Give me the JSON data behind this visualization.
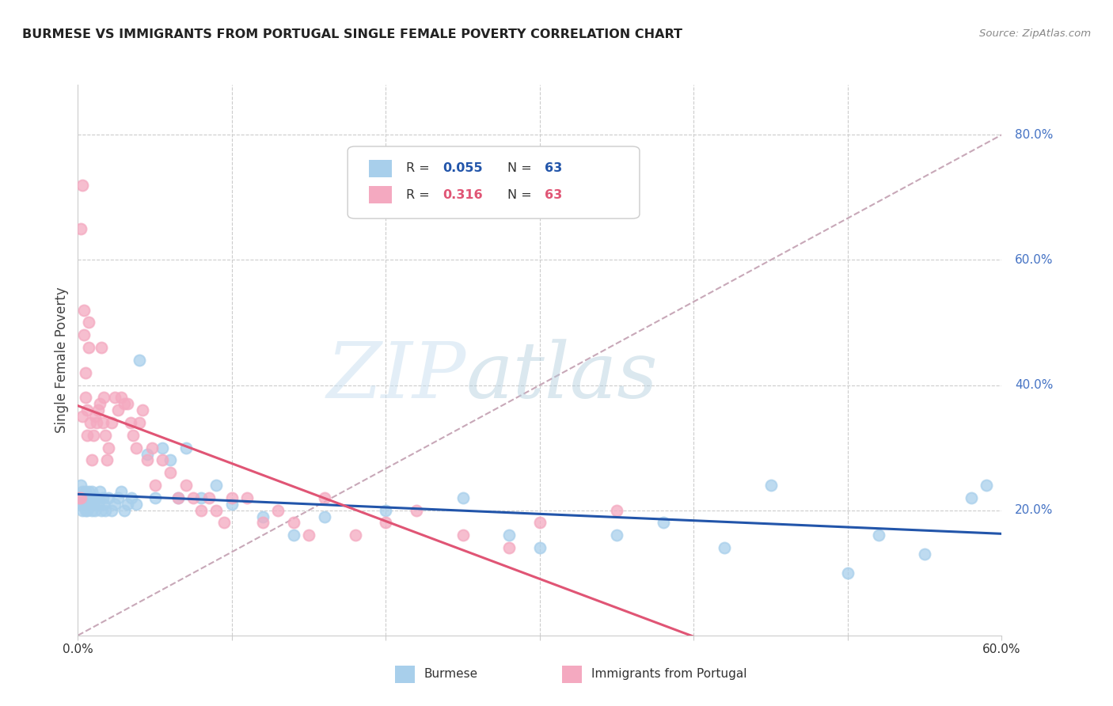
{
  "title": "BURMESE VS IMMIGRANTS FROM PORTUGAL SINGLE FEMALE POVERTY CORRELATION CHART",
  "source": "Source: ZipAtlas.com",
  "ylabel": "Single Female Poverty",
  "right_yticks": [
    "80.0%",
    "60.0%",
    "40.0%",
    "20.0%"
  ],
  "right_ytick_vals": [
    0.8,
    0.6,
    0.4,
    0.2
  ],
  "xlim": [
    0.0,
    0.6
  ],
  "ylim": [
    0.0,
    0.88
  ],
  "legend_blue_r": "0.055",
  "legend_blue_n": "63",
  "legend_pink_r": "0.316",
  "legend_pink_n": "63",
  "blue_color": "#A8CFEB",
  "pink_color": "#F4A9C0",
  "blue_line_color": "#2255AA",
  "pink_line_color": "#E05575",
  "dashed_line_color": "#C8A8B8",
  "background_color": "#FFFFFF",
  "grid_color": "#CCCCCC",
  "title_color": "#222222",
  "right_axis_color": "#4472C4",
  "watermark_zip": "ZIP",
  "watermark_atlas": "atlas",
  "blue_x": [
    0.001,
    0.002,
    0.002,
    0.003,
    0.003,
    0.004,
    0.004,
    0.005,
    0.005,
    0.005,
    0.006,
    0.006,
    0.007,
    0.007,
    0.008,
    0.008,
    0.009,
    0.009,
    0.01,
    0.01,
    0.011,
    0.012,
    0.013,
    0.014,
    0.015,
    0.016,
    0.017,
    0.018,
    0.02,
    0.022,
    0.024,
    0.026,
    0.028,
    0.03,
    0.032,
    0.035,
    0.038,
    0.04,
    0.045,
    0.05,
    0.055,
    0.06,
    0.065,
    0.07,
    0.08,
    0.09,
    0.1,
    0.12,
    0.14,
    0.16,
    0.2,
    0.25,
    0.28,
    0.3,
    0.35,
    0.38,
    0.42,
    0.45,
    0.5,
    0.52,
    0.55,
    0.58,
    0.59
  ],
  "blue_y": [
    0.22,
    0.24,
    0.21,
    0.23,
    0.2,
    0.22,
    0.21,
    0.23,
    0.2,
    0.22,
    0.21,
    0.2,
    0.22,
    0.23,
    0.21,
    0.22,
    0.2,
    0.23,
    0.22,
    0.21,
    0.2,
    0.22,
    0.21,
    0.23,
    0.2,
    0.22,
    0.21,
    0.2,
    0.22,
    0.2,
    0.21,
    0.22,
    0.23,
    0.2,
    0.21,
    0.22,
    0.21,
    0.44,
    0.29,
    0.22,
    0.3,
    0.28,
    0.22,
    0.3,
    0.22,
    0.24,
    0.21,
    0.19,
    0.16,
    0.19,
    0.2,
    0.22,
    0.16,
    0.14,
    0.16,
    0.18,
    0.14,
    0.24,
    0.1,
    0.16,
    0.13,
    0.22,
    0.24
  ],
  "pink_x": [
    0.001,
    0.002,
    0.002,
    0.003,
    0.003,
    0.004,
    0.004,
    0.005,
    0.005,
    0.006,
    0.006,
    0.007,
    0.007,
    0.008,
    0.009,
    0.01,
    0.011,
    0.012,
    0.013,
    0.014,
    0.015,
    0.016,
    0.017,
    0.018,
    0.019,
    0.02,
    0.022,
    0.024,
    0.026,
    0.028,
    0.03,
    0.032,
    0.034,
    0.036,
    0.038,
    0.04,
    0.042,
    0.045,
    0.048,
    0.05,
    0.055,
    0.06,
    0.065,
    0.07,
    0.075,
    0.08,
    0.085,
    0.09,
    0.095,
    0.1,
    0.11,
    0.12,
    0.13,
    0.14,
    0.15,
    0.16,
    0.18,
    0.2,
    0.22,
    0.25,
    0.28,
    0.3,
    0.35
  ],
  "pink_y": [
    0.22,
    0.65,
    0.22,
    0.72,
    0.35,
    0.52,
    0.48,
    0.38,
    0.42,
    0.36,
    0.32,
    0.5,
    0.46,
    0.34,
    0.28,
    0.32,
    0.35,
    0.34,
    0.36,
    0.37,
    0.46,
    0.34,
    0.38,
    0.32,
    0.28,
    0.3,
    0.34,
    0.38,
    0.36,
    0.38,
    0.37,
    0.37,
    0.34,
    0.32,
    0.3,
    0.34,
    0.36,
    0.28,
    0.3,
    0.24,
    0.28,
    0.26,
    0.22,
    0.24,
    0.22,
    0.2,
    0.22,
    0.2,
    0.18,
    0.22,
    0.22,
    0.18,
    0.2,
    0.18,
    0.16,
    0.22,
    0.16,
    0.18,
    0.2,
    0.16,
    0.14,
    0.18,
    0.2
  ]
}
